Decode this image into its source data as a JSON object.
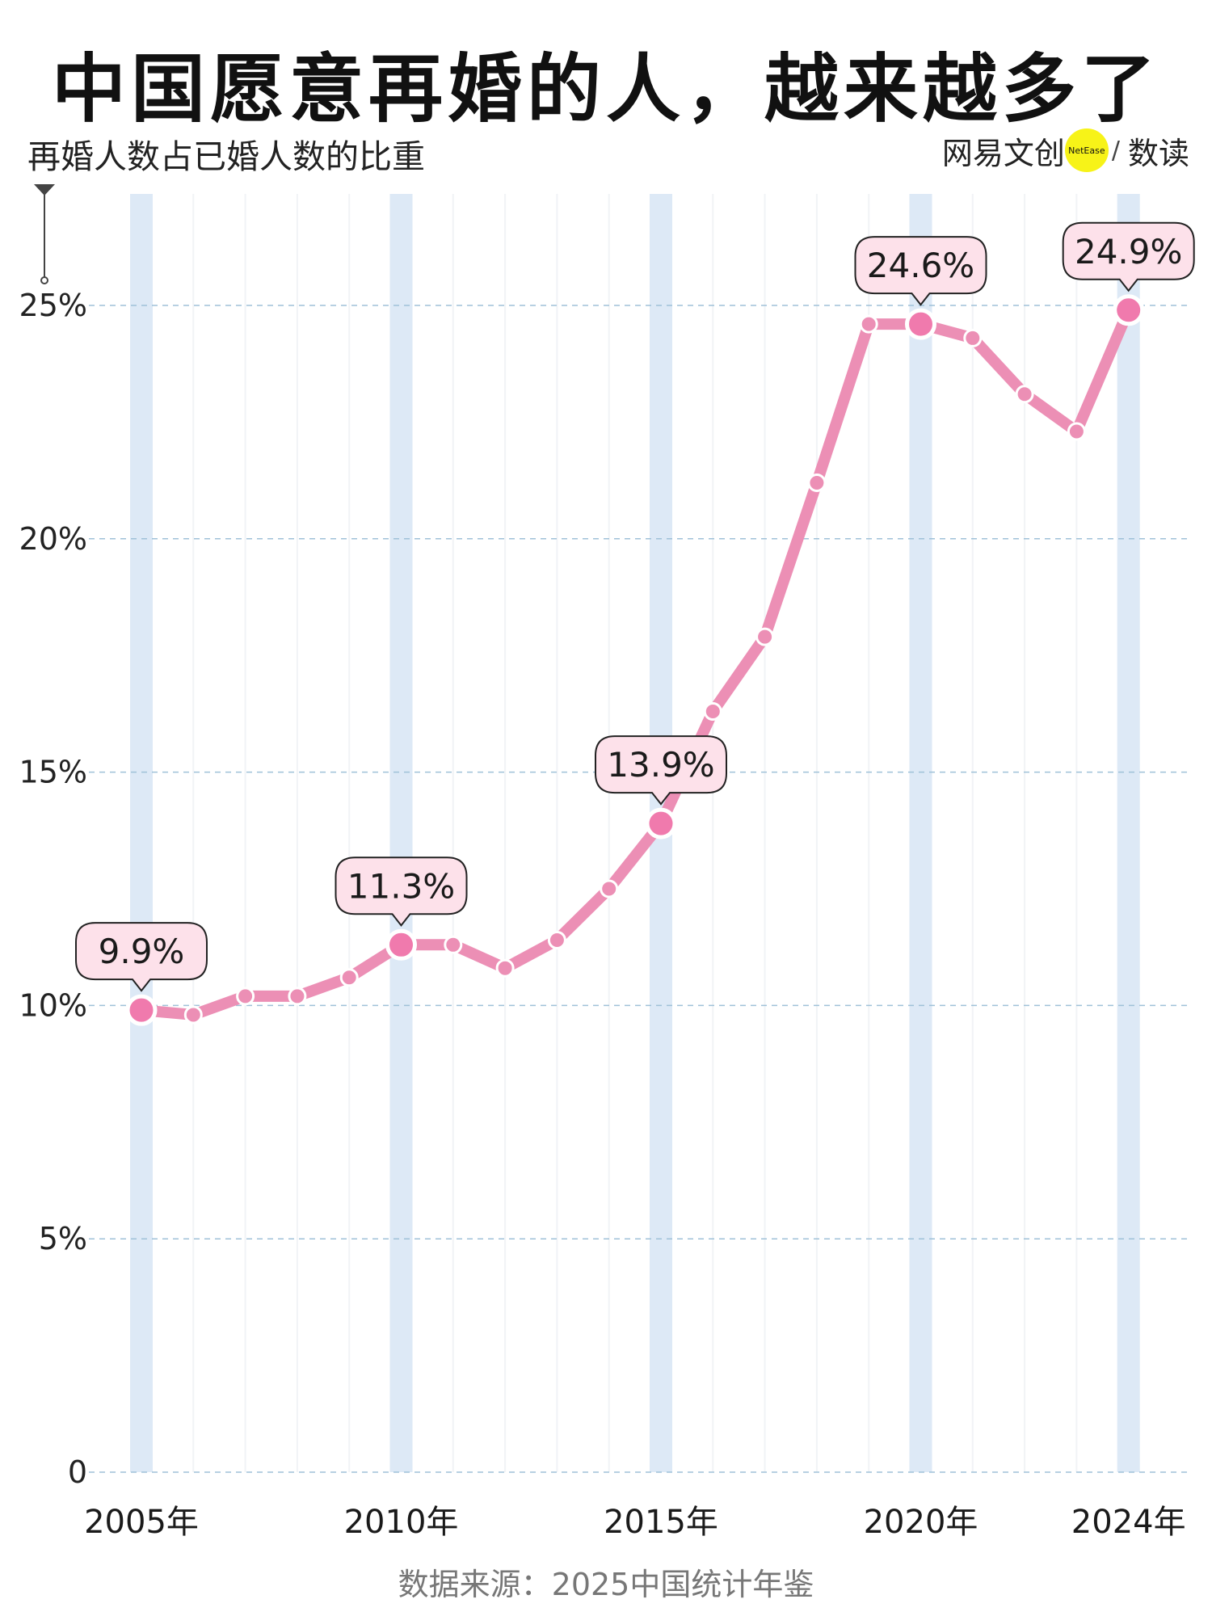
{
  "header": {
    "title": "中国愿意再婚的人，越来越多了",
    "subtitle": "再婚人数占已婚人数的比重",
    "brand_name": "网易文创",
    "brand_badge": "NetEase",
    "brand_slash": "/",
    "brand_section": "数读"
  },
  "footer": {
    "source": "数据来源：2025中国统计年鉴"
  },
  "colors": {
    "line": "#ec8fb5",
    "dot": "#ec8fb5",
    "highlight_dot": "#f07aad",
    "callout_fill": "#fde1ea",
    "column_band": "#dde9f6",
    "gridline": "#9fc1d8",
    "brand_yellow": "#f7f318"
  },
  "chart_data": {
    "type": "line",
    "title": "中国愿意再婚的人，越来越多了",
    "subtitle": "再婚人数占已婚人数的比重",
    "xlabel": "",
    "ylabel": "",
    "x": [
      2005,
      2006,
      2007,
      2008,
      2009,
      2010,
      2011,
      2012,
      2013,
      2014,
      2015,
      2016,
      2017,
      2018,
      2019,
      2020,
      2021,
      2022,
      2023,
      2024
    ],
    "series": [
      {
        "values": [
          9.9,
          9.8,
          10.2,
          10.2,
          10.6,
          11.3,
          11.3,
          10.8,
          11.4,
          12.5,
          13.9,
          16.3,
          17.9,
          21.2,
          24.6,
          24.6,
          24.3,
          23.1,
          22.3,
          24.9
        ]
      }
    ],
    "ylim": [
      0,
      27
    ],
    "y_ticks": [
      0,
      5,
      10,
      15,
      20,
      25
    ],
    "y_tick_labels": [
      "0",
      "5%",
      "10%",
      "15%",
      "20%",
      "25%"
    ],
    "x_tick_years": [
      2005,
      2010,
      2015,
      2020,
      2024
    ],
    "x_tick_labels": [
      "2005年",
      "2010年",
      "2015年",
      "2020年",
      "2024年"
    ],
    "highlight_years": [
      2005,
      2010,
      2015,
      2020,
      2024
    ],
    "annotations": [
      {
        "year": 2005,
        "label": "9.9%"
      },
      {
        "year": 2010,
        "label": "11.3%"
      },
      {
        "year": 2015,
        "label": "13.9%"
      },
      {
        "year": 2020,
        "label": "24.6%"
      },
      {
        "year": 2024,
        "label": "24.9%"
      }
    ],
    "grid": "horizontal dashed"
  }
}
